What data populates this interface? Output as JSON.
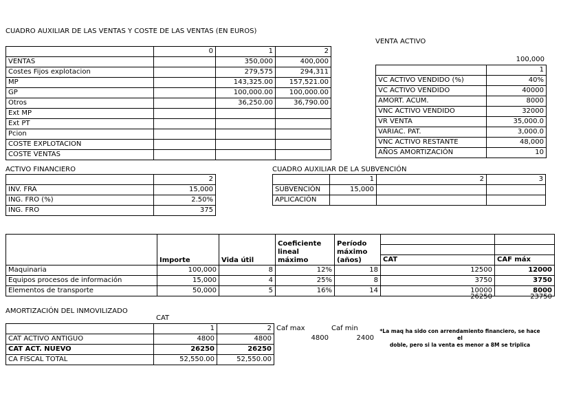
{
  "colors": {
    "text": "#000000",
    "background": "#ffffff",
    "border": "#000000"
  },
  "ventas": {
    "title": "CUADRO AUXILIAR DE LAS VENTAS Y COSTE DE LAS VENTAS (EN EUROS)",
    "rows": [
      [
        "",
        "0",
        "1",
        "2"
      ],
      [
        "VENTAS",
        "",
        "350,000",
        "400,000"
      ],
      [
        "Costes Fijos explotacion",
        "",
        "279,575",
        "294,311"
      ],
      [
        "MP",
        "",
        "143,325.00",
        "157,521.00"
      ],
      [
        "GP",
        "",
        "100,000.00",
        "100,000.00"
      ],
      [
        "Otros",
        "",
        "36,250.00",
        "36,790.00"
      ],
      [
        "Ext MP",
        "",
        "",
        ""
      ],
      [
        "Ext PT",
        "",
        "",
        ""
      ],
      [
        "Pcion",
        "",
        "",
        ""
      ],
      [
        "COSTE EXPLOTACION",
        "",
        "",
        ""
      ],
      [
        "COSTE VENTAS",
        "",
        "",
        ""
      ]
    ]
  },
  "venta_activo": {
    "title": "VENTA ACTIVO",
    "value_above": "100,000",
    "rows": [
      [
        "",
        "1"
      ],
      [
        "VC ACTIVO VENDIDO (%)",
        "40%"
      ],
      [
        "VC ACTIVO VENDIDO",
        "40000"
      ],
      [
        "AMORT. ACUM.",
        "8000"
      ],
      [
        "VNC ACTIVO VENDIDO",
        "32000"
      ],
      [
        "VR VENTA",
        "35,000.0"
      ],
      [
        "VARIAC. PAT.",
        "3,000.0"
      ],
      [
        "VNC ACTIVO RESTANTE",
        "48,000"
      ],
      [
        "AÑOS AMORTIZACIÓN",
        "10"
      ]
    ]
  },
  "activo_financiero": {
    "title": "ACTIVO FINANCIERO",
    "rows": [
      [
        "",
        "2"
      ],
      [
        "INV. FRA",
        "15,000"
      ],
      [
        "ING. FRO (%)",
        "2.50%"
      ],
      [
        "ING. FRO",
        "375"
      ]
    ]
  },
  "subvencion": {
    "title": "CUADRO AUXILIAR DE LA SUBVENCIÓN",
    "rows": [
      [
        "",
        "1",
        "2",
        "3"
      ],
      [
        "SUBVENCIÓN",
        "15,000",
        "",
        ""
      ],
      [
        "APLICACIÓN",
        "",
        "",
        ""
      ]
    ]
  },
  "amortizacion_auxiliar": {
    "headers": {
      "importe": "Importe",
      "vida_util": "Vida útil",
      "coeficiente": "Coeficiente\nlineal\nmáximo",
      "periodo": "Período\nmáximo\n(años)",
      "cat": "CAT",
      "caf_max": "CAF máx"
    },
    "rows": [
      [
        "Maquinaria",
        "100,000",
        "8",
        "12%",
        "18",
        "12500",
        {
          "t": "12000",
          "c": "b"
        }
      ],
      [
        "Equipos procesos de información",
        "15,000",
        "4",
        "25%",
        "8",
        "3750",
        {
          "t": "3750",
          "c": "b"
        }
      ],
      [
        "Elementos de transporte",
        "50,000",
        "5",
        "16%",
        "14",
        "10000",
        {
          "t": "8000",
          "c": "b"
        }
      ]
    ],
    "totals": {
      "cat": "26250",
      "caf_max": "23750"
    }
  },
  "amortizacion_inmovilizado": {
    "title": "AMORTIZACIÓN DEL INMOVILIZADO",
    "cat_label": "CAT",
    "rows": [
      [
        "",
        "1",
        "2"
      ],
      [
        "CAT ACTIVO ANTIGUO",
        "4800",
        "4800"
      ],
      [
        {
          "t": "CAT ACT. NUEVO",
          "c": "b"
        },
        {
          "t": "26250",
          "c": "b"
        },
        {
          "t": "26250",
          "c": "b"
        }
      ],
      [
        "CA FISCAL TOTAL",
        "52,550.00",
        "52,550.00"
      ]
    ],
    "caf_max_label": "Caf max",
    "caf_min_label": "Caf min",
    "caf_max_value": "4800",
    "caf_min_value": "2400",
    "note": "*La maq ha sido con arrendamiento financiero, se hace el\ndoble, pero si la venta es menor a 8M se triplica"
  }
}
